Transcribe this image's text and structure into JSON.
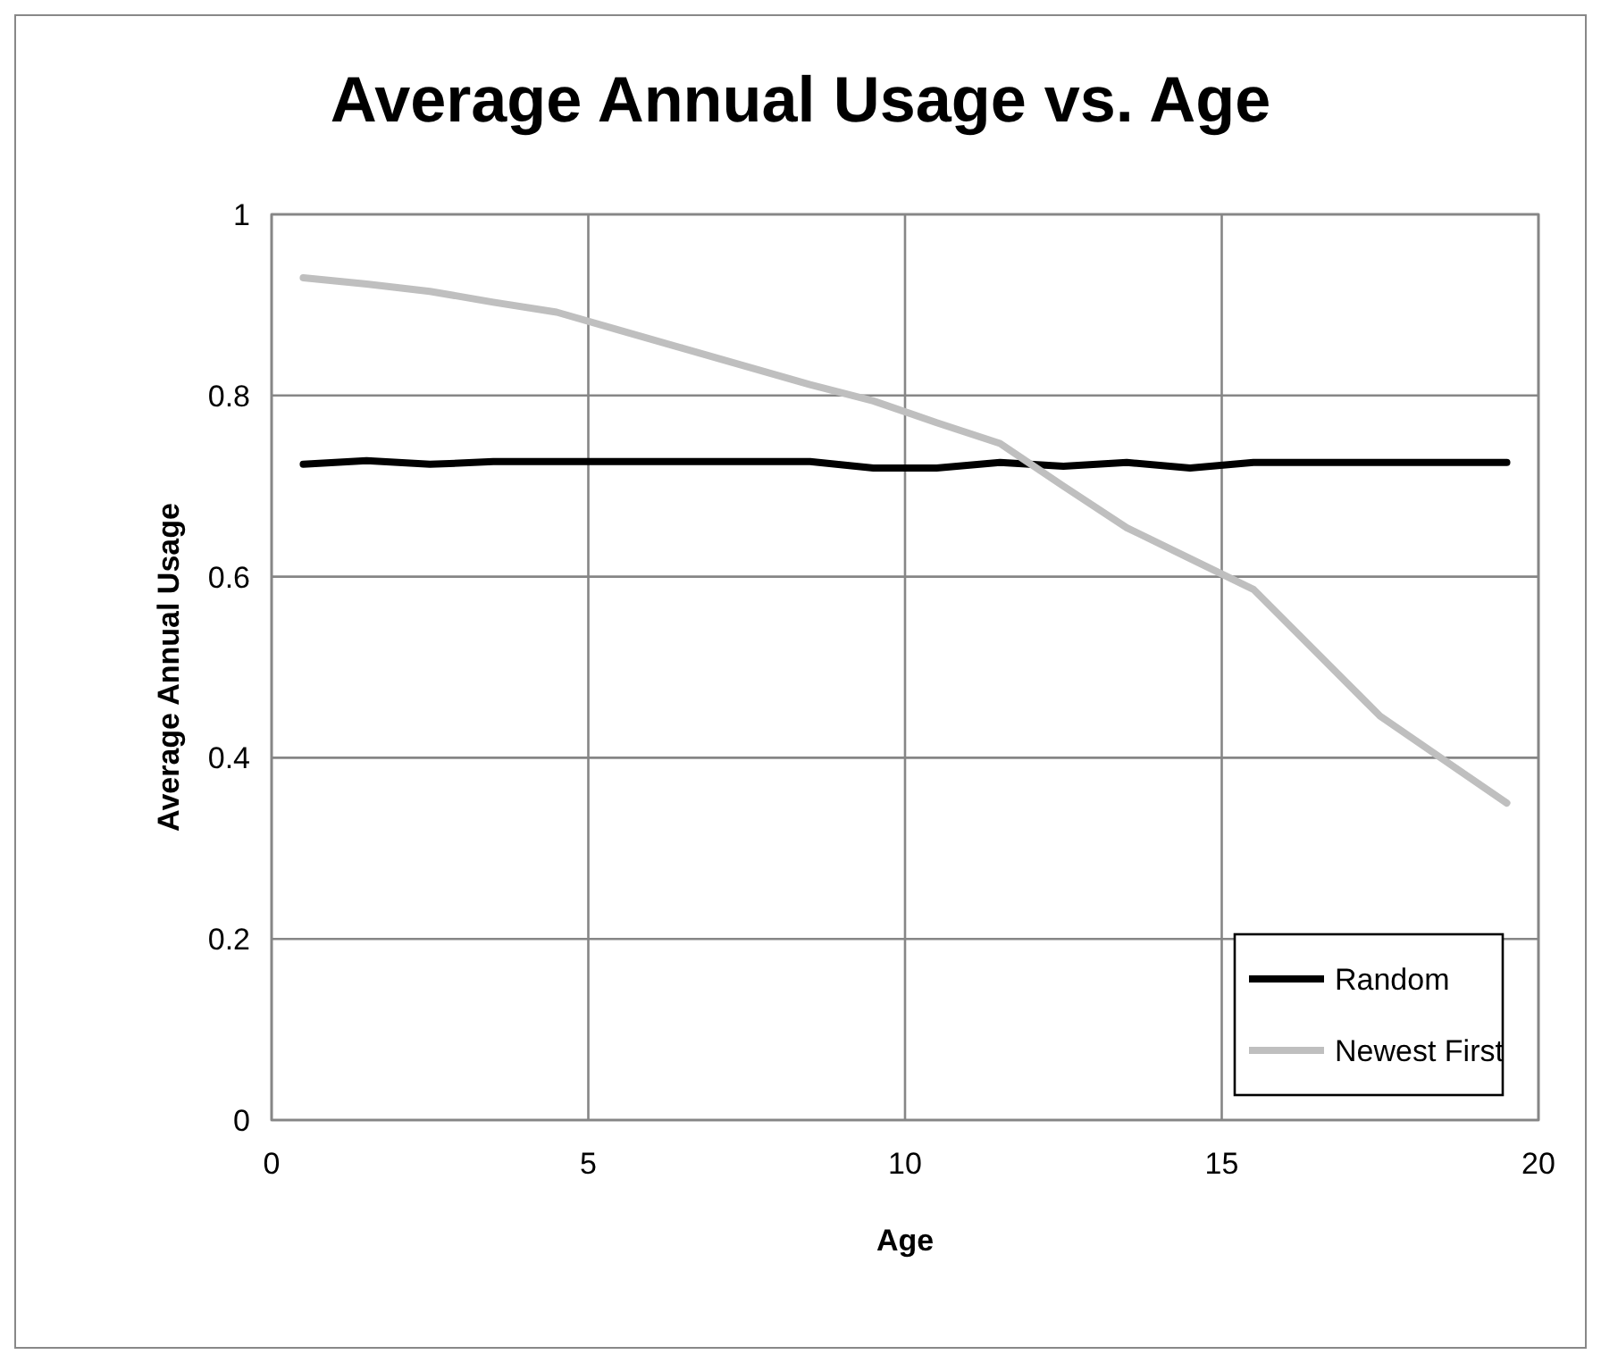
{
  "chart_data": {
    "type": "line",
    "title": "Average Annual Usage vs. Age",
    "xlabel": "Age",
    "ylabel": "Average Annual Usage",
    "x": [
      0.5,
      1.5,
      2.5,
      3.5,
      4.5,
      5.5,
      6.5,
      7.5,
      8.5,
      9.5,
      10.5,
      11.5,
      12.5,
      13.5,
      14.5,
      15.5,
      16.5,
      17.5,
      18.5,
      19.5
    ],
    "series": [
      {
        "name": "Random",
        "color": "#000000",
        "values": [
          0.724,
          0.728,
          0.724,
          0.727,
          0.727,
          0.727,
          0.727,
          0.727,
          0.727,
          0.72,
          0.72,
          0.726,
          0.722,
          0.726,
          0.72,
          0.726,
          0.726,
          0.726,
          0.726,
          0.726
        ]
      },
      {
        "name": "Newest First",
        "color": "#bfbfbf",
        "values": [
          0.93,
          0.923,
          0.915,
          0.903,
          0.892,
          0.872,
          0.852,
          0.832,
          0.812,
          0.794,
          0.77,
          0.747,
          0.7,
          0.654,
          0.62,
          0.586,
          0.516,
          0.446,
          0.398,
          0.35
        ]
      }
    ],
    "xlim": [
      0,
      20
    ],
    "xticks": [
      0,
      5,
      10,
      15,
      20
    ],
    "ylim": [
      0,
      1
    ],
    "yticks": [
      0,
      0.2,
      0.4,
      0.6,
      0.8,
      1
    ],
    "grid": true,
    "legend": "bottom right",
    "marker": "none",
    "line_style": "solid"
  }
}
